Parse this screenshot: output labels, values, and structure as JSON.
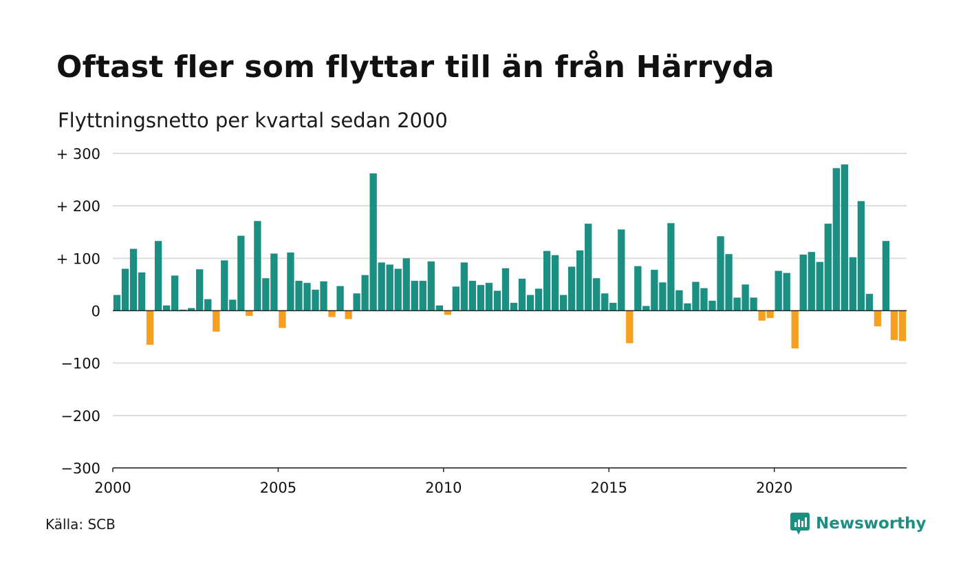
{
  "title": "Oftast fler som flyttar till än från Härryda",
  "subtitle": "Flyttningsnetto per kvartal sedan 2000",
  "source": "Källa: SCB",
  "brand": {
    "name": "Newsworthy",
    "icon": "newsworthy-logo-icon"
  },
  "colors": {
    "positive": "#1b8f82",
    "negative": "#f5a020",
    "grid": "#dddddd",
    "axis": "#222222"
  },
  "chart_data": {
    "type": "bar",
    "x_start": 2000,
    "x_step": 0.25,
    "xlim": [
      2000,
      2024
    ],
    "ylim": [
      -300,
      300
    ],
    "grid": true,
    "y_ticks": [
      300,
      200,
      100,
      0,
      -100,
      -200,
      -300
    ],
    "y_tick_labels": [
      "+ 300",
      "+ 200",
      "+ 100",
      "0",
      "−100",
      "−200",
      "−300"
    ],
    "x_ticks": [
      2000,
      2005,
      2010,
      2015,
      2020
    ],
    "x_tick_labels": [
      "2000",
      "2005",
      "2010",
      "2015",
      "2020"
    ],
    "values": [
      30,
      80,
      118,
      73,
      -65,
      133,
      10,
      67,
      2,
      5,
      79,
      22,
      -40,
      96,
      21,
      143,
      -10,
      171,
      62,
      109,
      -33,
      111,
      57,
      53,
      40,
      56,
      -12,
      47,
      -16,
      33,
      68,
      262,
      92,
      88,
      80,
      100,
      57,
      57,
      94,
      10,
      -8,
      46,
      92,
      57,
      49,
      53,
      38,
      81,
      15,
      61,
      30,
      42,
      114,
      106,
      30,
      84,
      115,
      166,
      62,
      33,
      15,
      155,
      -62,
      85,
      9,
      78,
      54,
      167,
      39,
      14,
      55,
      43,
      19,
      142,
      108,
      25,
      50,
      25,
      -19,
      -14,
      76,
      72,
      -72,
      107,
      112,
      93,
      166,
      272,
      279,
      102,
      209,
      32,
      -30,
      133,
      -56,
      -58
    ]
  }
}
